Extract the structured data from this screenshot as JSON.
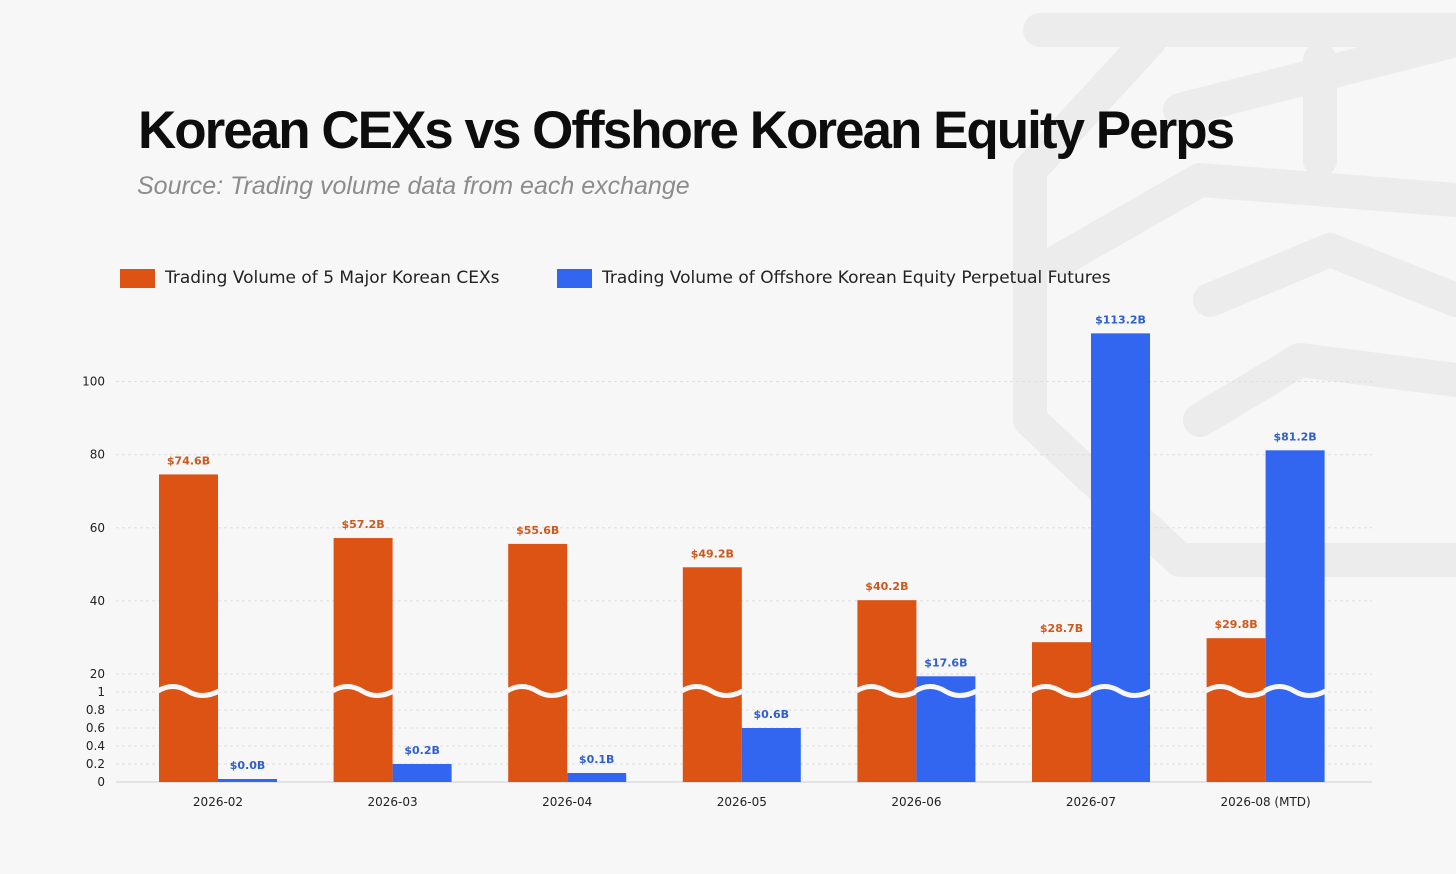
{
  "header": {
    "title": "Korean CEXs vs Offshore Korean Equity Perps",
    "subtitle": "Source: Trading volume data from each exchange"
  },
  "colors": {
    "cex": "#dd5314",
    "offshore": "#3366f0",
    "cex_label": "#cc5a1e",
    "offshore_label": "#2f5fcf"
  },
  "chart_data": {
    "type": "bar",
    "categories": [
      "2026-02",
      "2026-03",
      "2026-04",
      "2026-05",
      "2026-06",
      "2026-07",
      "2026-08 (MTD)"
    ],
    "series": [
      {
        "name": "Trading Volume of 5 Major Korean CEXs",
        "values": [
          74.6,
          57.2,
          55.6,
          49.2,
          40.2,
          28.7,
          29.8
        ],
        "labels": [
          "$74.6B",
          "$57.2B",
          "$55.6B",
          "$49.2B",
          "$40.2B",
          "$28.7B",
          "$29.8B"
        ]
      },
      {
        "name": "Trading Volume of Offshore Korean Equity Perpetual Futures",
        "values": [
          0.0,
          0.2,
          0.1,
          0.6,
          17.6,
          113.2,
          81.2
        ],
        "labels": [
          "$0.0B",
          "$0.2B",
          "$0.1B",
          "$0.6B",
          "$17.6B",
          "$113.2B",
          "$81.2B"
        ]
      }
    ],
    "axis_break": {
      "lower_range": [
        0,
        1
      ],
      "upper_range": [
        20,
        120
      ]
    },
    "y_ticks_lower": [
      "0",
      "0.2",
      "0.4",
      "0.6",
      "0.8",
      "1"
    ],
    "y_ticks_upper": [
      "20",
      "40",
      "60",
      "80",
      "100"
    ],
    "legend_position": "top-left",
    "grid": true
  }
}
